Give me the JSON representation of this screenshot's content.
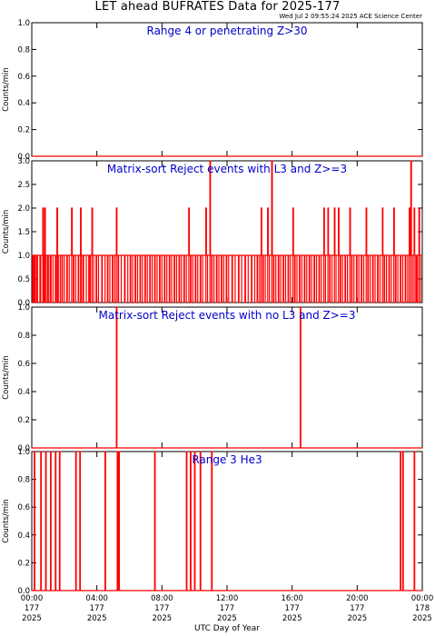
{
  "title": "LET ahead BUFRATES Data for 2025-177",
  "timestamp": "Wed Jul  2 09:55:24 2025 ACE Science Center",
  "x_axis_label": "UTC Day of Year",
  "y_axis_label": "Counts/min",
  "colors": {
    "data": "#ff0000",
    "panel_title": "#0000cc",
    "axes": "#000000"
  },
  "x_ticks": [
    {
      "hour": 0,
      "time": "00:00",
      "day": "177",
      "year": "2025"
    },
    {
      "hour": 4,
      "time": "04:00",
      "day": "177",
      "year": "2025"
    },
    {
      "hour": 8,
      "time": "08:00",
      "day": "177",
      "year": "2025"
    },
    {
      "hour": 12,
      "time": "12:00",
      "day": "177",
      "year": "2025"
    },
    {
      "hour": 16,
      "time": "16:00",
      "day": "177",
      "year": "2025"
    },
    {
      "hour": 20,
      "time": "20:00",
      "day": "177",
      "year": "2025"
    },
    {
      "hour": 24,
      "time": "00:00",
      "day": "178",
      "year": "2025"
    }
  ],
  "chart_data": [
    {
      "type": "line",
      "title": "Range 4  or   penetrating Z>30",
      "ylim": [
        0,
        1.0
      ],
      "yticks": [
        "0.0",
        "0.2",
        "0.4",
        "0.6",
        "0.8",
        "1.0"
      ],
      "xlim_hours": [
        0,
        24
      ],
      "baseline": 0,
      "spikes": []
    },
    {
      "type": "line",
      "title": "Matrix-sort Reject events with L3 and Z>=3",
      "ylim": [
        0,
        3.0
      ],
      "yticks": [
        "0.0",
        "0.5",
        "1.0",
        "1.5",
        "2.0",
        "2.5",
        "3.0"
      ],
      "xlim_hours": [
        0,
        24
      ],
      "baseline": 1,
      "dense_spikes": true,
      "spikes": [
        [
          0.05,
          1
        ],
        [
          0.12,
          0
        ],
        [
          0.2,
          1
        ],
        [
          0.28,
          0
        ],
        [
          0.35,
          1
        ],
        [
          0.5,
          0
        ],
        [
          0.55,
          1
        ],
        [
          0.68,
          2
        ],
        [
          0.72,
          0
        ],
        [
          0.8,
          2
        ],
        [
          0.85,
          1
        ],
        [
          0.95,
          0
        ],
        [
          1.05,
          1
        ],
        [
          1.15,
          0
        ],
        [
          1.3,
          1
        ],
        [
          1.45,
          0
        ],
        [
          1.55,
          2
        ],
        [
          1.6,
          0
        ],
        [
          1.75,
          1
        ],
        [
          1.85,
          0
        ],
        [
          2.0,
          1
        ],
        [
          2.15,
          0
        ],
        [
          2.3,
          1
        ],
        [
          2.45,
          2
        ],
        [
          2.55,
          0
        ],
        [
          2.7,
          1
        ],
        [
          2.85,
          0
        ],
        [
          3.0,
          2
        ],
        [
          3.05,
          1
        ],
        [
          3.15,
          0
        ],
        [
          3.35,
          1
        ],
        [
          3.5,
          0
        ],
        [
          3.6,
          1
        ],
        [
          3.7,
          2
        ],
        [
          3.8,
          1
        ],
        [
          3.95,
          0
        ],
        [
          4.1,
          1
        ],
        [
          4.3,
          0
        ],
        [
          4.5,
          1
        ],
        [
          4.65,
          0
        ],
        [
          4.8,
          1
        ],
        [
          4.95,
          0
        ],
        [
          5.1,
          1
        ],
        [
          5.2,
          2
        ],
        [
          5.3,
          0
        ],
        [
          5.5,
          1
        ],
        [
          5.7,
          0
        ],
        [
          5.9,
          1
        ],
        [
          6.05,
          0
        ],
        [
          6.2,
          1
        ],
        [
          6.35,
          0
        ],
        [
          6.5,
          1
        ],
        [
          6.65,
          0
        ],
        [
          6.8,
          1
        ],
        [
          6.95,
          0
        ],
        [
          7.1,
          1
        ],
        [
          7.25,
          0
        ],
        [
          7.4,
          1
        ],
        [
          7.55,
          0
        ],
        [
          7.7,
          1
        ],
        [
          7.85,
          0
        ],
        [
          8.0,
          1
        ],
        [
          8.15,
          0
        ],
        [
          8.3,
          1
        ],
        [
          8.45,
          0
        ],
        [
          8.6,
          1
        ],
        [
          8.75,
          0
        ],
        [
          8.9,
          1
        ],
        [
          9.05,
          0
        ],
        [
          9.2,
          1
        ],
        [
          9.35,
          0
        ],
        [
          9.5,
          1
        ],
        [
          9.65,
          2
        ],
        [
          9.75,
          0
        ],
        [
          9.9,
          1
        ],
        [
          10.05,
          0
        ],
        [
          10.2,
          1
        ],
        [
          10.35,
          0
        ],
        [
          10.5,
          1
        ],
        [
          10.7,
          2
        ],
        [
          10.8,
          1
        ],
        [
          10.95,
          3
        ],
        [
          11.05,
          0
        ],
        [
          11.2,
          1
        ],
        [
          11.35,
          0
        ],
        [
          11.5,
          1
        ],
        [
          11.65,
          0
        ],
        [
          11.8,
          1
        ],
        [
          11.95,
          0
        ],
        [
          12.1,
          1
        ],
        [
          12.3,
          0
        ],
        [
          12.5,
          1
        ],
        [
          12.7,
          0
        ],
        [
          12.9,
          1
        ],
        [
          13.1,
          0
        ],
        [
          13.3,
          1
        ],
        [
          13.5,
          0
        ],
        [
          13.7,
          1
        ],
        [
          13.85,
          0
        ],
        [
          14.0,
          1
        ],
        [
          14.1,
          2
        ],
        [
          14.2,
          0
        ],
        [
          14.35,
          1
        ],
        [
          14.5,
          2
        ],
        [
          14.6,
          1
        ],
        [
          14.75,
          3
        ],
        [
          14.85,
          0
        ],
        [
          15.0,
          1
        ],
        [
          15.15,
          0
        ],
        [
          15.3,
          1
        ],
        [
          15.45,
          0
        ],
        [
          15.6,
          1
        ],
        [
          15.75,
          0
        ],
        [
          15.9,
          1
        ],
        [
          16.05,
          2
        ],
        [
          16.15,
          0
        ],
        [
          16.3,
          1
        ],
        [
          16.45,
          0
        ],
        [
          16.6,
          1
        ],
        [
          16.75,
          0
        ],
        [
          16.9,
          1
        ],
        [
          17.05,
          0
        ],
        [
          17.2,
          1
        ],
        [
          17.35,
          0
        ],
        [
          17.5,
          1
        ],
        [
          17.65,
          0
        ],
        [
          17.8,
          1
        ],
        [
          17.95,
          2
        ],
        [
          18.05,
          1
        ],
        [
          18.2,
          2
        ],
        [
          18.3,
          0
        ],
        [
          18.45,
          1
        ],
        [
          18.6,
          2
        ],
        [
          18.7,
          1
        ],
        [
          18.85,
          2
        ],
        [
          18.95,
          0
        ],
        [
          19.1,
          1
        ],
        [
          19.25,
          0
        ],
        [
          19.4,
          1
        ],
        [
          19.55,
          2
        ],
        [
          19.65,
          0
        ],
        [
          19.8,
          1
        ],
        [
          19.95,
          0
        ],
        [
          20.1,
          1
        ],
        [
          20.25,
          0
        ],
        [
          20.4,
          1
        ],
        [
          20.55,
          2
        ],
        [
          20.65,
          0
        ],
        [
          20.8,
          1
        ],
        [
          20.95,
          0
        ],
        [
          21.1,
          1
        ],
        [
          21.25,
          0
        ],
        [
          21.4,
          1
        ],
        [
          21.55,
          2
        ],
        [
          21.65,
          0
        ],
        [
          21.8,
          1
        ],
        [
          21.95,
          0
        ],
        [
          22.1,
          1
        ],
        [
          22.25,
          2
        ],
        [
          22.35,
          0
        ],
        [
          22.5,
          1
        ],
        [
          22.65,
          0
        ],
        [
          22.8,
          1
        ],
        [
          22.95,
          0
        ],
        [
          23.1,
          1
        ],
        [
          23.2,
          2
        ],
        [
          23.3,
          3
        ],
        [
          23.4,
          1
        ],
        [
          23.5,
          2
        ],
        [
          23.6,
          0
        ],
        [
          23.7,
          1
        ],
        [
          23.8,
          2
        ],
        [
          23.9,
          1
        ]
      ]
    },
    {
      "type": "line",
      "title": "Matrix-sort Reject events with no L3 and Z>=3",
      "ylim": [
        0,
        1.0
      ],
      "yticks": [
        "0.0",
        "0.2",
        "0.4",
        "0.6",
        "0.8",
        "1.0"
      ],
      "xlim_hours": [
        0,
        24
      ],
      "baseline": 0,
      "spikes": [
        [
          5.2,
          1.0
        ],
        [
          16.5,
          1.0
        ]
      ]
    },
    {
      "type": "line",
      "title": "Range 3 He3",
      "ylim": [
        0,
        1.0
      ],
      "yticks": [
        "0.0",
        "0.2",
        "0.4",
        "0.6",
        "0.8",
        "1.0"
      ],
      "xlim_hours": [
        0,
        24
      ],
      "baseline": 0,
      "spikes": [
        [
          0.15,
          1
        ],
        [
          0.55,
          1
        ],
        [
          0.85,
          1
        ],
        [
          1.15,
          1
        ],
        [
          1.45,
          1
        ],
        [
          1.7,
          1
        ],
        [
          2.7,
          1
        ],
        [
          2.95,
          1
        ],
        [
          4.5,
          1
        ],
        [
          5.25,
          1
        ],
        [
          5.35,
          1
        ],
        [
          7.55,
          1
        ],
        [
          9.5,
          1
        ],
        [
          9.75,
          1
        ],
        [
          10.0,
          1
        ],
        [
          10.35,
          1
        ],
        [
          11.05,
          1
        ],
        [
          22.65,
          1
        ],
        [
          22.8,
          1
        ],
        [
          23.5,
          1
        ]
      ]
    }
  ]
}
